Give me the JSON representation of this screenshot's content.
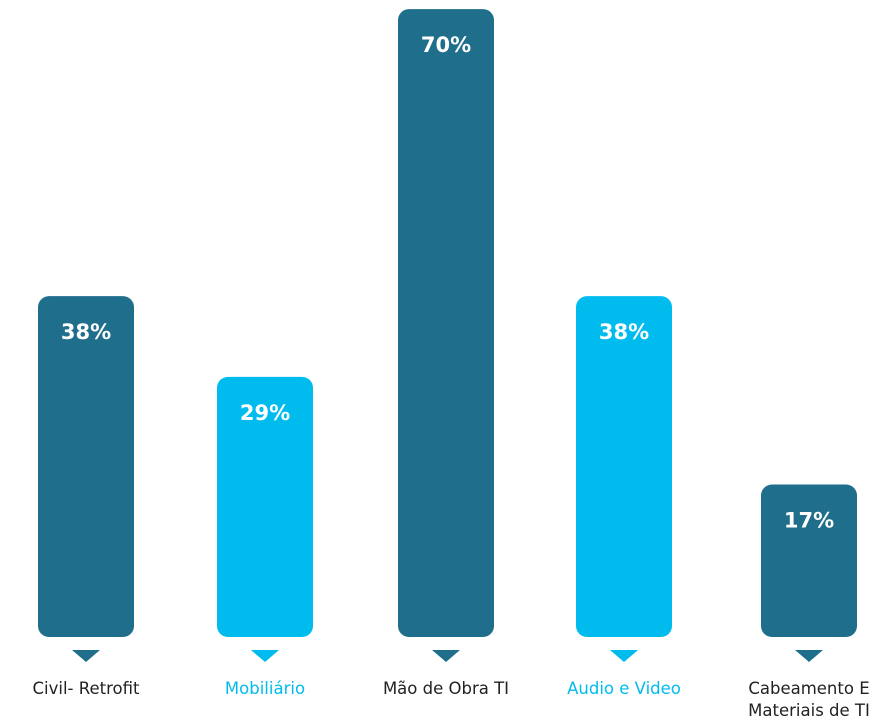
{
  "chart_data": {
    "type": "bar",
    "categories": [
      "Civil- Retrofit",
      "Mobiliário",
      "Mão de Obra TI",
      "Audio e Video",
      "Cabeamento E Materiais de TI"
    ],
    "category_lines": [
      [
        "Civil- Retrofit"
      ],
      [
        "Mobiliário"
      ],
      [
        "Mão de Obra TI"
      ],
      [
        "Audio e Video"
      ],
      [
        "Cabeamento E",
        "Materiais de TI"
      ]
    ],
    "values": [
      38,
      29,
      70,
      38,
      17
    ],
    "value_labels": [
      "38%",
      "29%",
      "70%",
      "38%",
      "17%"
    ],
    "unit": "%",
    "colors": [
      "#1f6e8c",
      "#00bcee",
      "#1f6e8c",
      "#00bcee",
      "#1f6e8c"
    ],
    "label_colors": [
      "#222222",
      "#00bcee",
      "#222222",
      "#00bcee",
      "#222222"
    ],
    "title": "",
    "xlabel": "",
    "ylabel": "",
    "grid": false,
    "legend": "none"
  }
}
